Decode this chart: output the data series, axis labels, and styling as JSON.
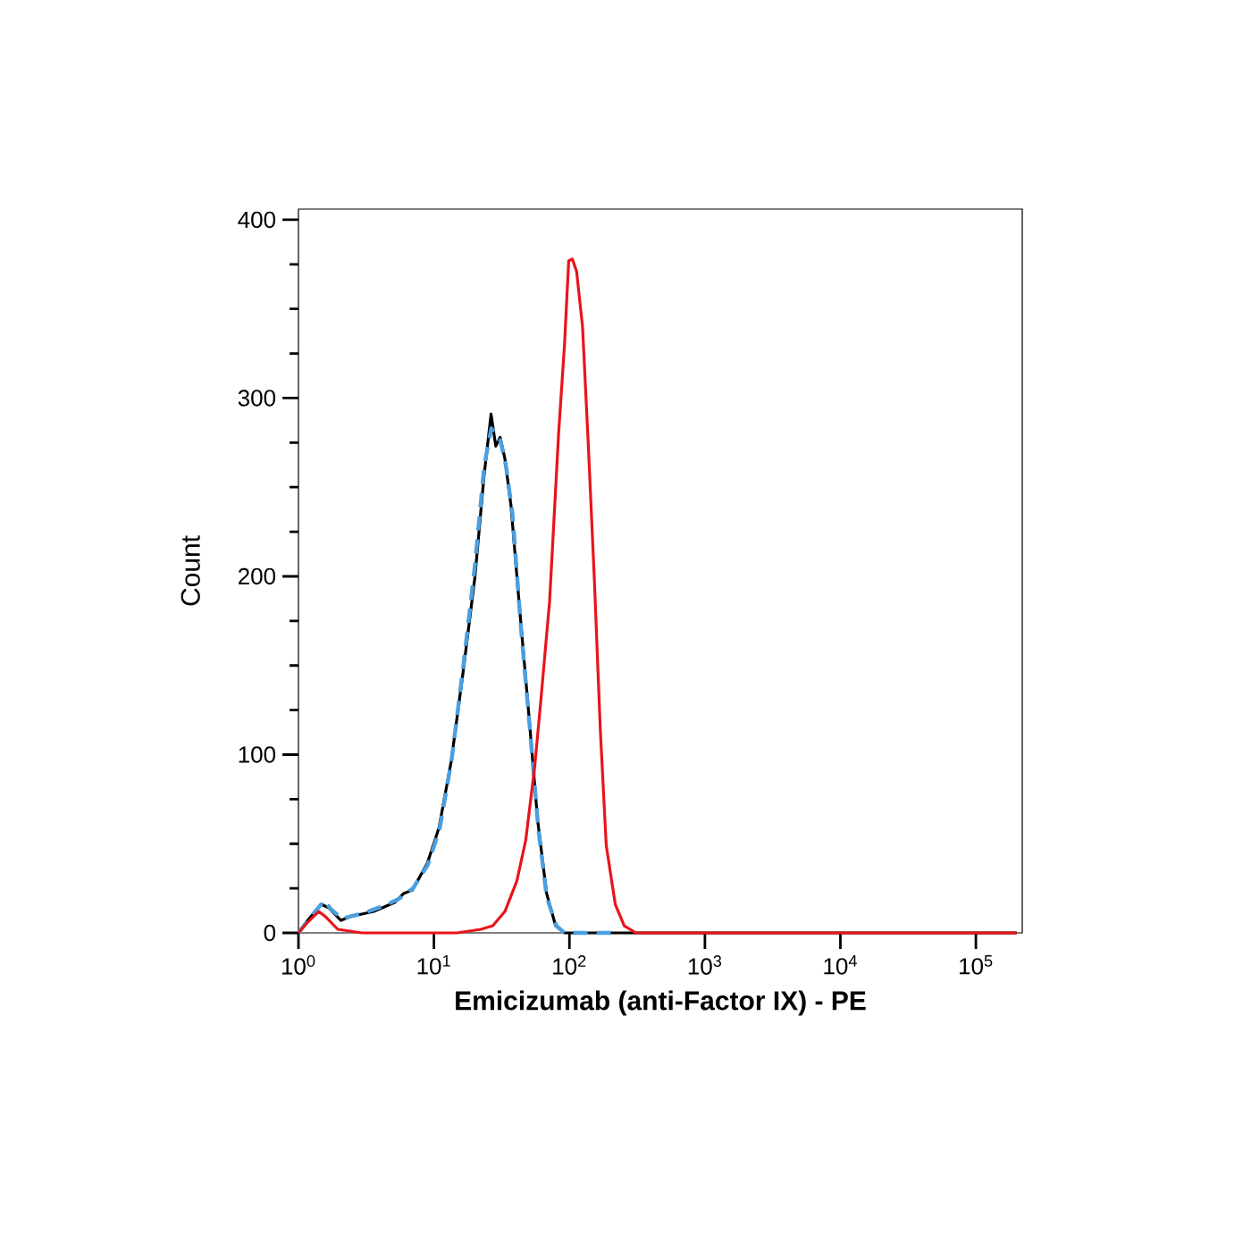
{
  "chart_data": {
    "type": "line",
    "xlabel": "**Emicizumab (anti-Factor IX) - PE**",
    "ylabel": "Count",
    "log": "x",
    "xlim": [
      1,
      220000
    ],
    "ylim": [
      0,
      406
    ],
    "xticks": [
      {
        "value": 1,
        "label": "10$^{0}$"
      },
      {
        "value": 10,
        "label": "10$^{1}$"
      },
      {
        "value": 100,
        "label": "10$^{2}$"
      },
      {
        "value": 1000,
        "label": "10$^{3}$"
      },
      {
        "value": 10000,
        "label": "10$^{4}$"
      },
      {
        "value": 100000,
        "label": "10$^{5}$"
      }
    ],
    "yticks": [
      0,
      100,
      200,
      300,
      400
    ],
    "series": [
      {
        "color": "#000000",
        "line_style": "solid",
        "x": [
          1,
          1.17,
          1.47,
          1.68,
          2.06,
          2.39,
          3.59,
          5.12,
          5.96,
          6.93,
          8.93,
          10.9,
          13.4,
          16.4,
          20.1,
          23.4,
          26.4,
          28.6,
          30.8,
          33.4,
          37.0,
          43.1,
          50.1,
          58.3,
          67.9,
          79.1,
          92.0,
          200000
        ],
        "values": [
          0,
          7,
          16,
          14,
          7,
          9,
          12,
          17,
          22,
          24,
          39,
          59,
          96,
          146,
          200,
          256,
          291,
          273,
          278,
          266,
          240,
          180,
          123,
          63,
          22,
          4,
          0,
          0
        ]
      },
      {
        "color": "#4a9fe0",
        "line_style": "dashed",
        "x": [
          1,
          1.2,
          1.55,
          1.75,
          2.1,
          3.0,
          4.2,
          5.5,
          7.0,
          9.0,
          11,
          13.5,
          16.5,
          20,
          23.5,
          26.5,
          28.5,
          31,
          34,
          38,
          44,
          51,
          59,
          68,
          80,
          92,
          230
        ],
        "values": [
          0,
          8,
          18,
          13,
          8,
          11,
          15,
          19,
          25,
          38,
          58,
          97,
          150,
          205,
          262,
          283,
          280,
          276,
          262,
          235,
          170,
          115,
          58,
          20,
          4,
          0,
          0
        ]
      },
      {
        "color": "#e8141c",
        "line_style": "solid",
        "x": [
          1,
          1.17,
          1.41,
          1.59,
          1.95,
          2.93,
          14.8,
          22.2,
          27.2,
          33.4,
          40.9,
          47.6,
          55.4,
          61.3,
          71.4,
          83.2,
          92.0,
          98.8,
          105,
          113,
          125,
          138,
          153,
          169,
          187,
          218,
          254,
          310,
          200000
        ],
        "values": [
          0,
          6,
          12,
          9,
          2,
          0,
          0,
          2,
          4,
          12,
          29,
          52,
          93,
          129,
          186,
          280,
          330,
          377,
          378,
          371,
          340,
          273,
          197,
          114,
          49,
          16,
          4,
          0,
          0
        ]
      }
    ]
  }
}
